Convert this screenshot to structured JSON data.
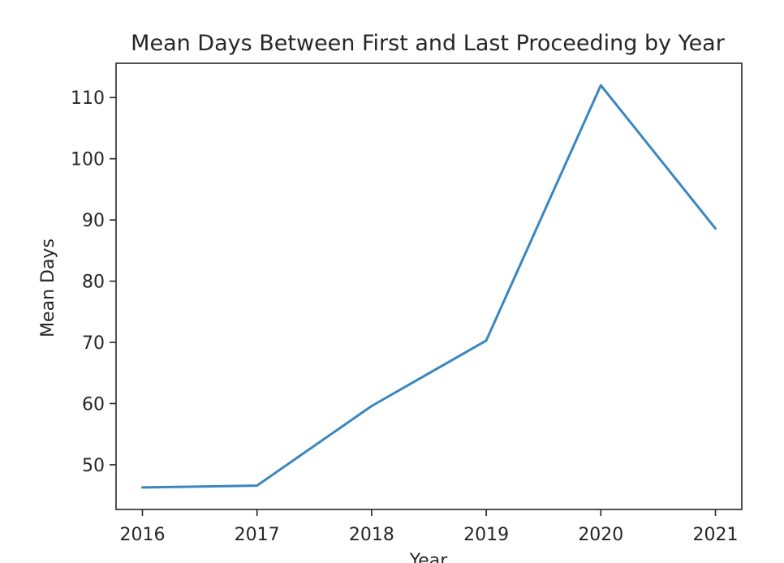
{
  "chart_data": {
    "type": "line",
    "title": "Mean Days Between First and Last Proceeding by Year",
    "xlabel": "Year",
    "ylabel": "Mean Days",
    "x": [
      2016,
      2017,
      2018,
      2019,
      2020,
      2021
    ],
    "series": [
      {
        "values": [
          46.3,
          46.6,
          59.6,
          70.3,
          112.0,
          88.6
        ],
        "color": "#3a86c0"
      }
    ],
    "xticks": [
      "2016",
      "2017",
      "2018",
      "2019",
      "2020",
      "2021"
    ],
    "yticks": [
      "50",
      "60",
      "70",
      "80",
      "90",
      "100",
      "110"
    ],
    "xlim": [
      2015.77,
      2021.23
    ],
    "ylim": [
      42.7,
      115.6
    ],
    "grid": false,
    "legend": "none"
  }
}
